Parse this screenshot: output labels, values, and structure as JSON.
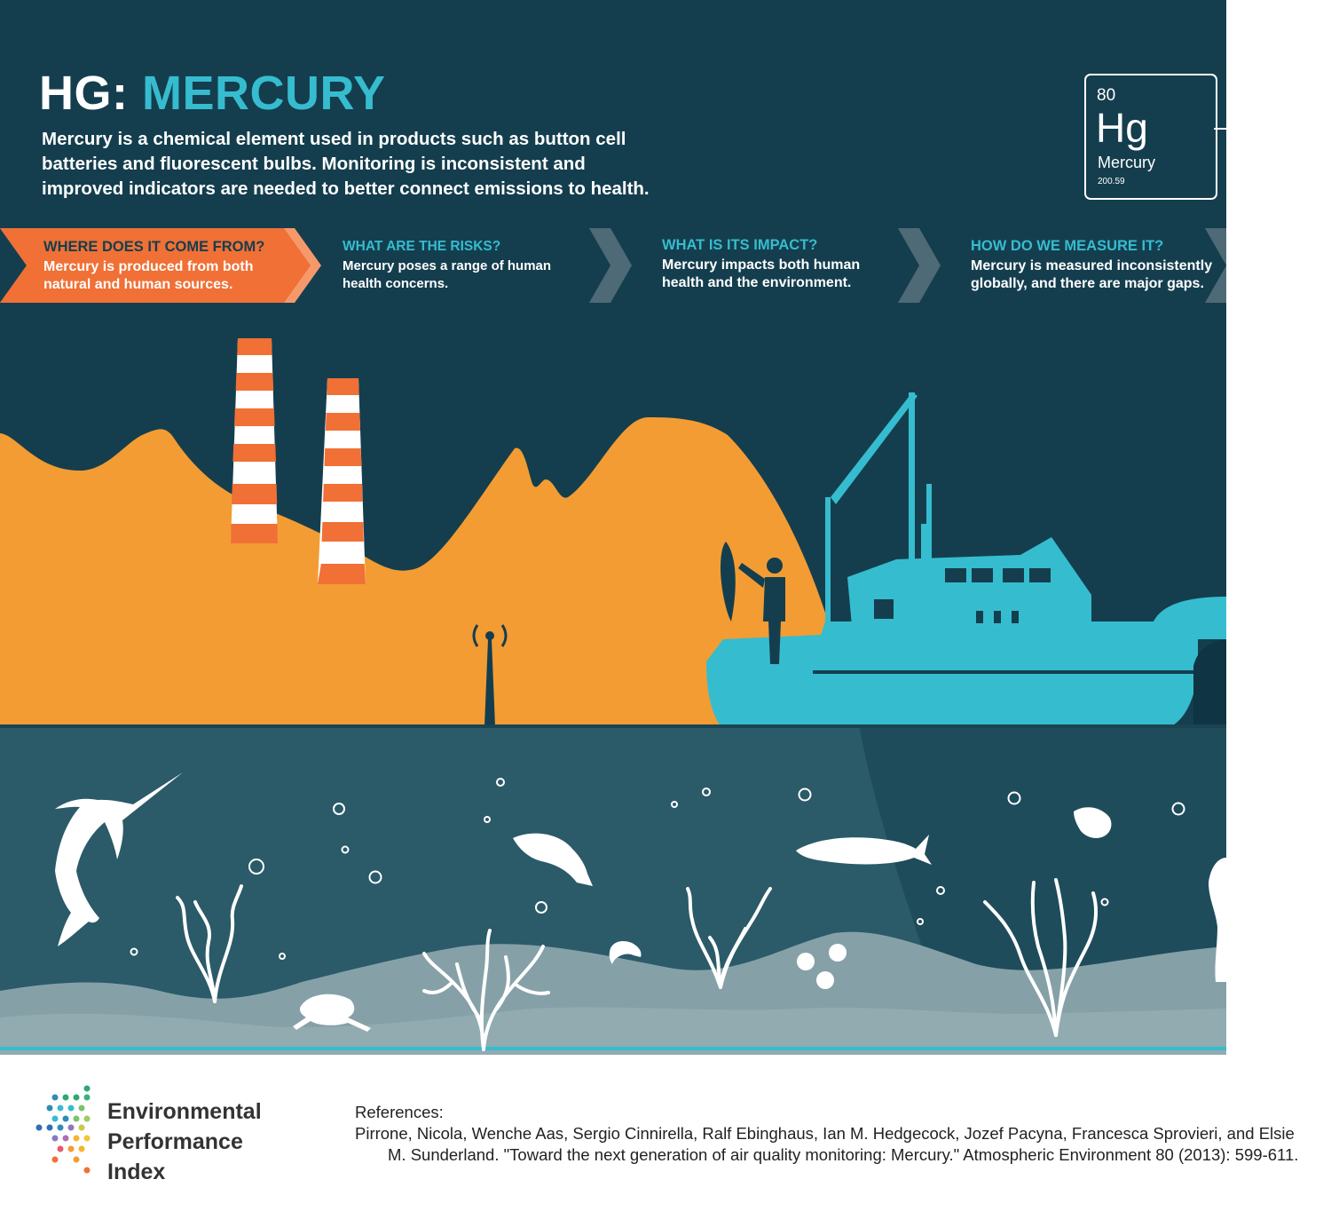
{
  "header": {
    "title_prefix": "HG:",
    "title_main": "MERCURY",
    "intro_lines": [
      "Mercury is a chemical element used in products such as button cell",
      "batteries and fluorescent bulbs. Monitoring is inconsistent and",
      "improved indicators are needed to better connect emissions to health."
    ]
  },
  "element": {
    "number": "80",
    "symbol": "Hg",
    "name": "Mercury",
    "mass": "200.59"
  },
  "steps": [
    {
      "title": "WHERE DOES IT COME FROM?",
      "lines": [
        "Mercury is produced from both",
        "natural and human sources."
      ]
    },
    {
      "title": "WHAT ARE THE RISKS?",
      "lines": [
        "Mercury poses a range of human",
        "health concerns."
      ]
    },
    {
      "title": "WHAT IS ITS IMPACT?",
      "lines": [
        "Mercury impacts both human",
        "health and the environment."
      ]
    },
    {
      "title": "HOW DO WE MEASURE IT?",
      "lines": [
        "Mercury is measured inconsistently",
        "globally, and there are major gaps."
      ]
    }
  ],
  "footer": {
    "logo_lines": [
      "Environmental",
      "Performance",
      "Index"
    ],
    "refs_heading": "References:",
    "ref_line_1": "Pirrone, Nicola, Wenche Aas, Sergio Cinnirella, Ralf Ebinghaus, Ian M. Hedgecock, Jozef Pacyna, Francesca Sprovieri, and Elsie",
    "ref_line_2": "M. Sunderland. \"Toward the next generation of air quality monitoring: Mercury.\" Atmospheric Environment 80 (2013): 599-611."
  },
  "colors": {
    "navy": "#143e4e",
    "teal": "#36bccf",
    "orange": "#f39c33",
    "stripe": "#f07036",
    "water": "#2b5a69",
    "seabed": "#85a1a7"
  }
}
